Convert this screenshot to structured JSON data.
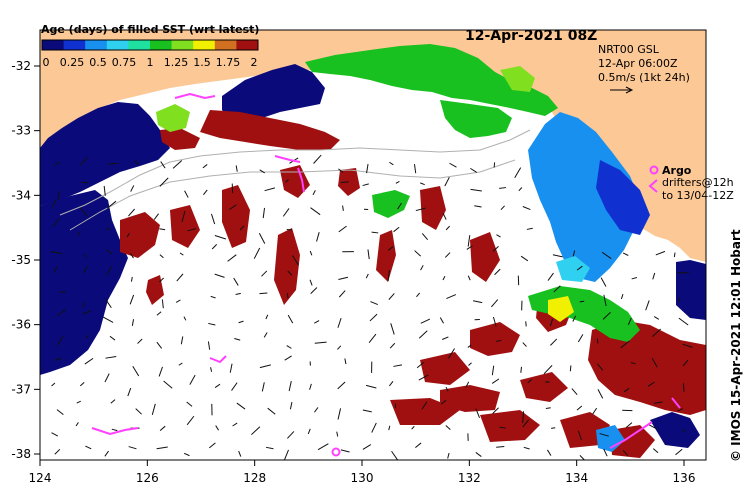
{
  "map": {
    "title": "12-Apr-2021 08Z",
    "colorbar": {
      "label": "Age (days) of filled SST (wrt latest)",
      "ticks": [
        "0",
        "0.25",
        "0.5",
        "0.75",
        "1",
        "1.25",
        "1.5",
        "1.75",
        "2"
      ],
      "colors": [
        "#0a0a7a",
        "#1030d0",
        "#1890f0",
        "#30d0f0",
        "#20e0a0",
        "#18c020",
        "#80e020",
        "#f0f000",
        "#d07020",
        "#a01010"
      ]
    },
    "info": {
      "line1": "NRT00 GSL",
      "line2": "12-Apr 06:00Z",
      "line3": "0.5m/s (1kt 24h)"
    },
    "legend": {
      "argo": "Argo",
      "drifters": "drifters@12h",
      "drifters_to": "to 13/04-12Z"
    },
    "credit": "© IMOS 15-Apr-2021 12:01 Hobart",
    "x_ticks": [
      "124",
      "126",
      "128",
      "130",
      "132",
      "134",
      "136"
    ],
    "y_ticks": [
      "-32",
      "-33",
      "-34",
      "-35",
      "-36",
      "-37",
      "-38"
    ],
    "colors": {
      "land": "#fcc896",
      "sea_blank": "#ffffff",
      "navy": "#0a0a7a",
      "darkred": "#a01010",
      "green": "#18c020",
      "lightgreen": "#80e020",
      "blue": "#1890f0",
      "midblue": "#1030d0",
      "argo": "#ff40ff"
    }
  }
}
